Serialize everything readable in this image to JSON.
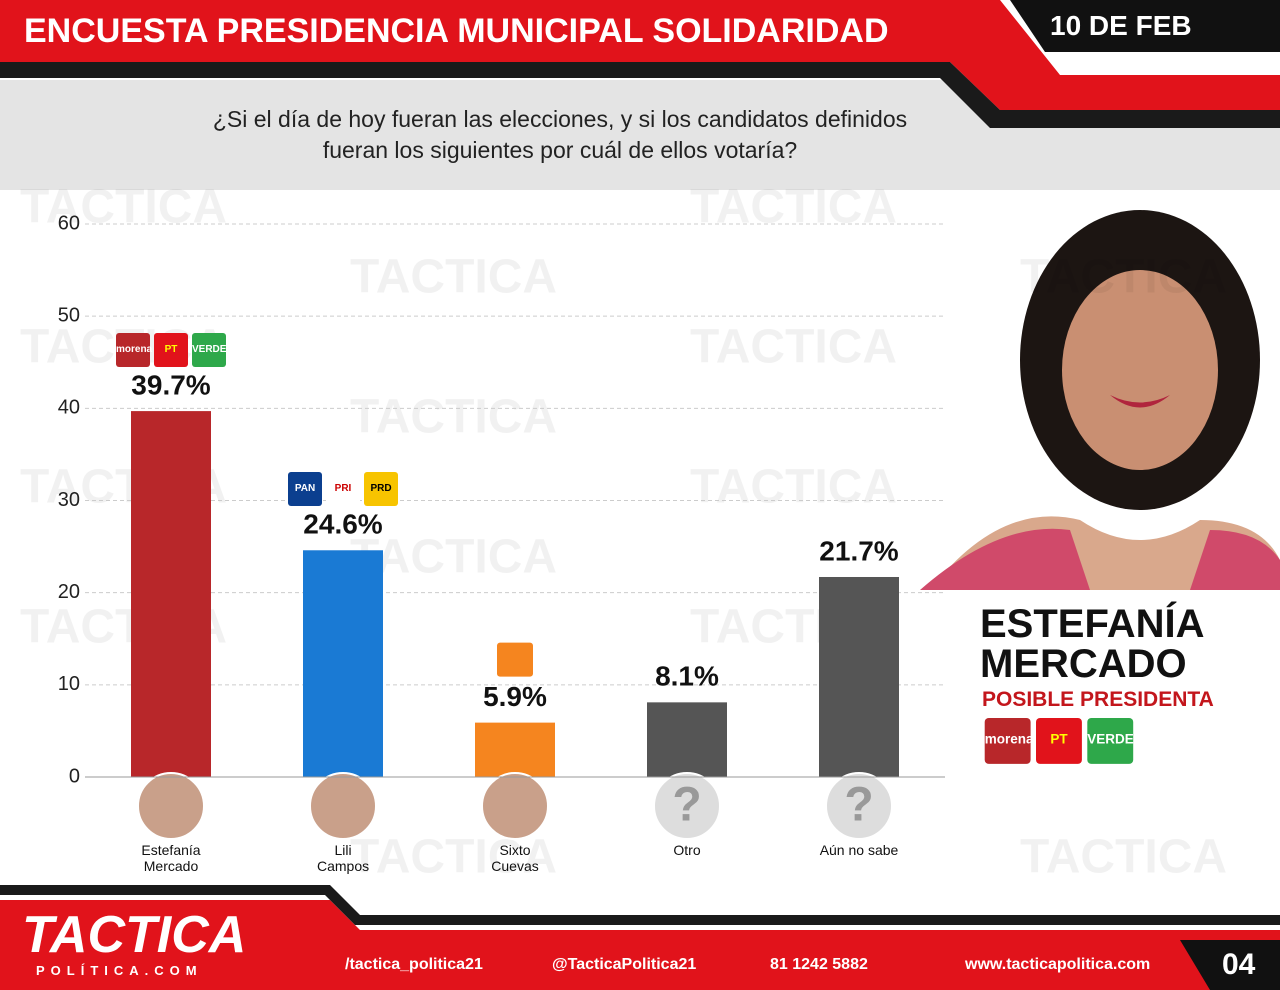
{
  "header": {
    "title": "ENCUESTA PRESIDENCIA MUNICIPAL SOLIDARIDAD",
    "date": "10 DE FEB"
  },
  "question": "¿Si el día de hoy fueran las elecciones, y si los candidatos definidos fueran los siguientes por cuál de ellos votaría?",
  "watermark": "TACTICA",
  "chart_data": {
    "type": "bar",
    "categories": [
      "Estefanía Mercado",
      "Lili Campos",
      "Sixto Cuevas",
      "Otro",
      "Aún no sabe"
    ],
    "values": [
      39.7,
      24.6,
      5.9,
      8.1,
      21.7
    ],
    "value_labels": [
      "39.7%",
      "24.6%",
      "5.9%",
      "8.1%",
      "21.7%"
    ],
    "colors": [
      "#b8272a",
      "#1a7ad4",
      "#f5851f",
      "#555555",
      "#555555"
    ],
    "ylim": [
      0,
      60
    ],
    "yticks": [
      0,
      10,
      20,
      30,
      40,
      50,
      60
    ],
    "grid": true
  },
  "party_logos": [
    [
      "morena",
      "PT",
      "VERDE"
    ],
    [
      "PAN",
      "PRI",
      "PRD"
    ]
  ],
  "unknown_icon": "?",
  "featured": {
    "name": "ESTEFANÍA MERCADO",
    "role": "POSIBLE PRESIDENTA"
  },
  "footer": {
    "brand": "TACTICA",
    "brand_sub": "POLÍTICA.COM",
    "facebook": "/tactica_politica21",
    "instagram": "@TacticaPolitica21",
    "whatsapp": "81 1242 5882",
    "web": "www.tacticapolitica.com",
    "page": "04"
  }
}
